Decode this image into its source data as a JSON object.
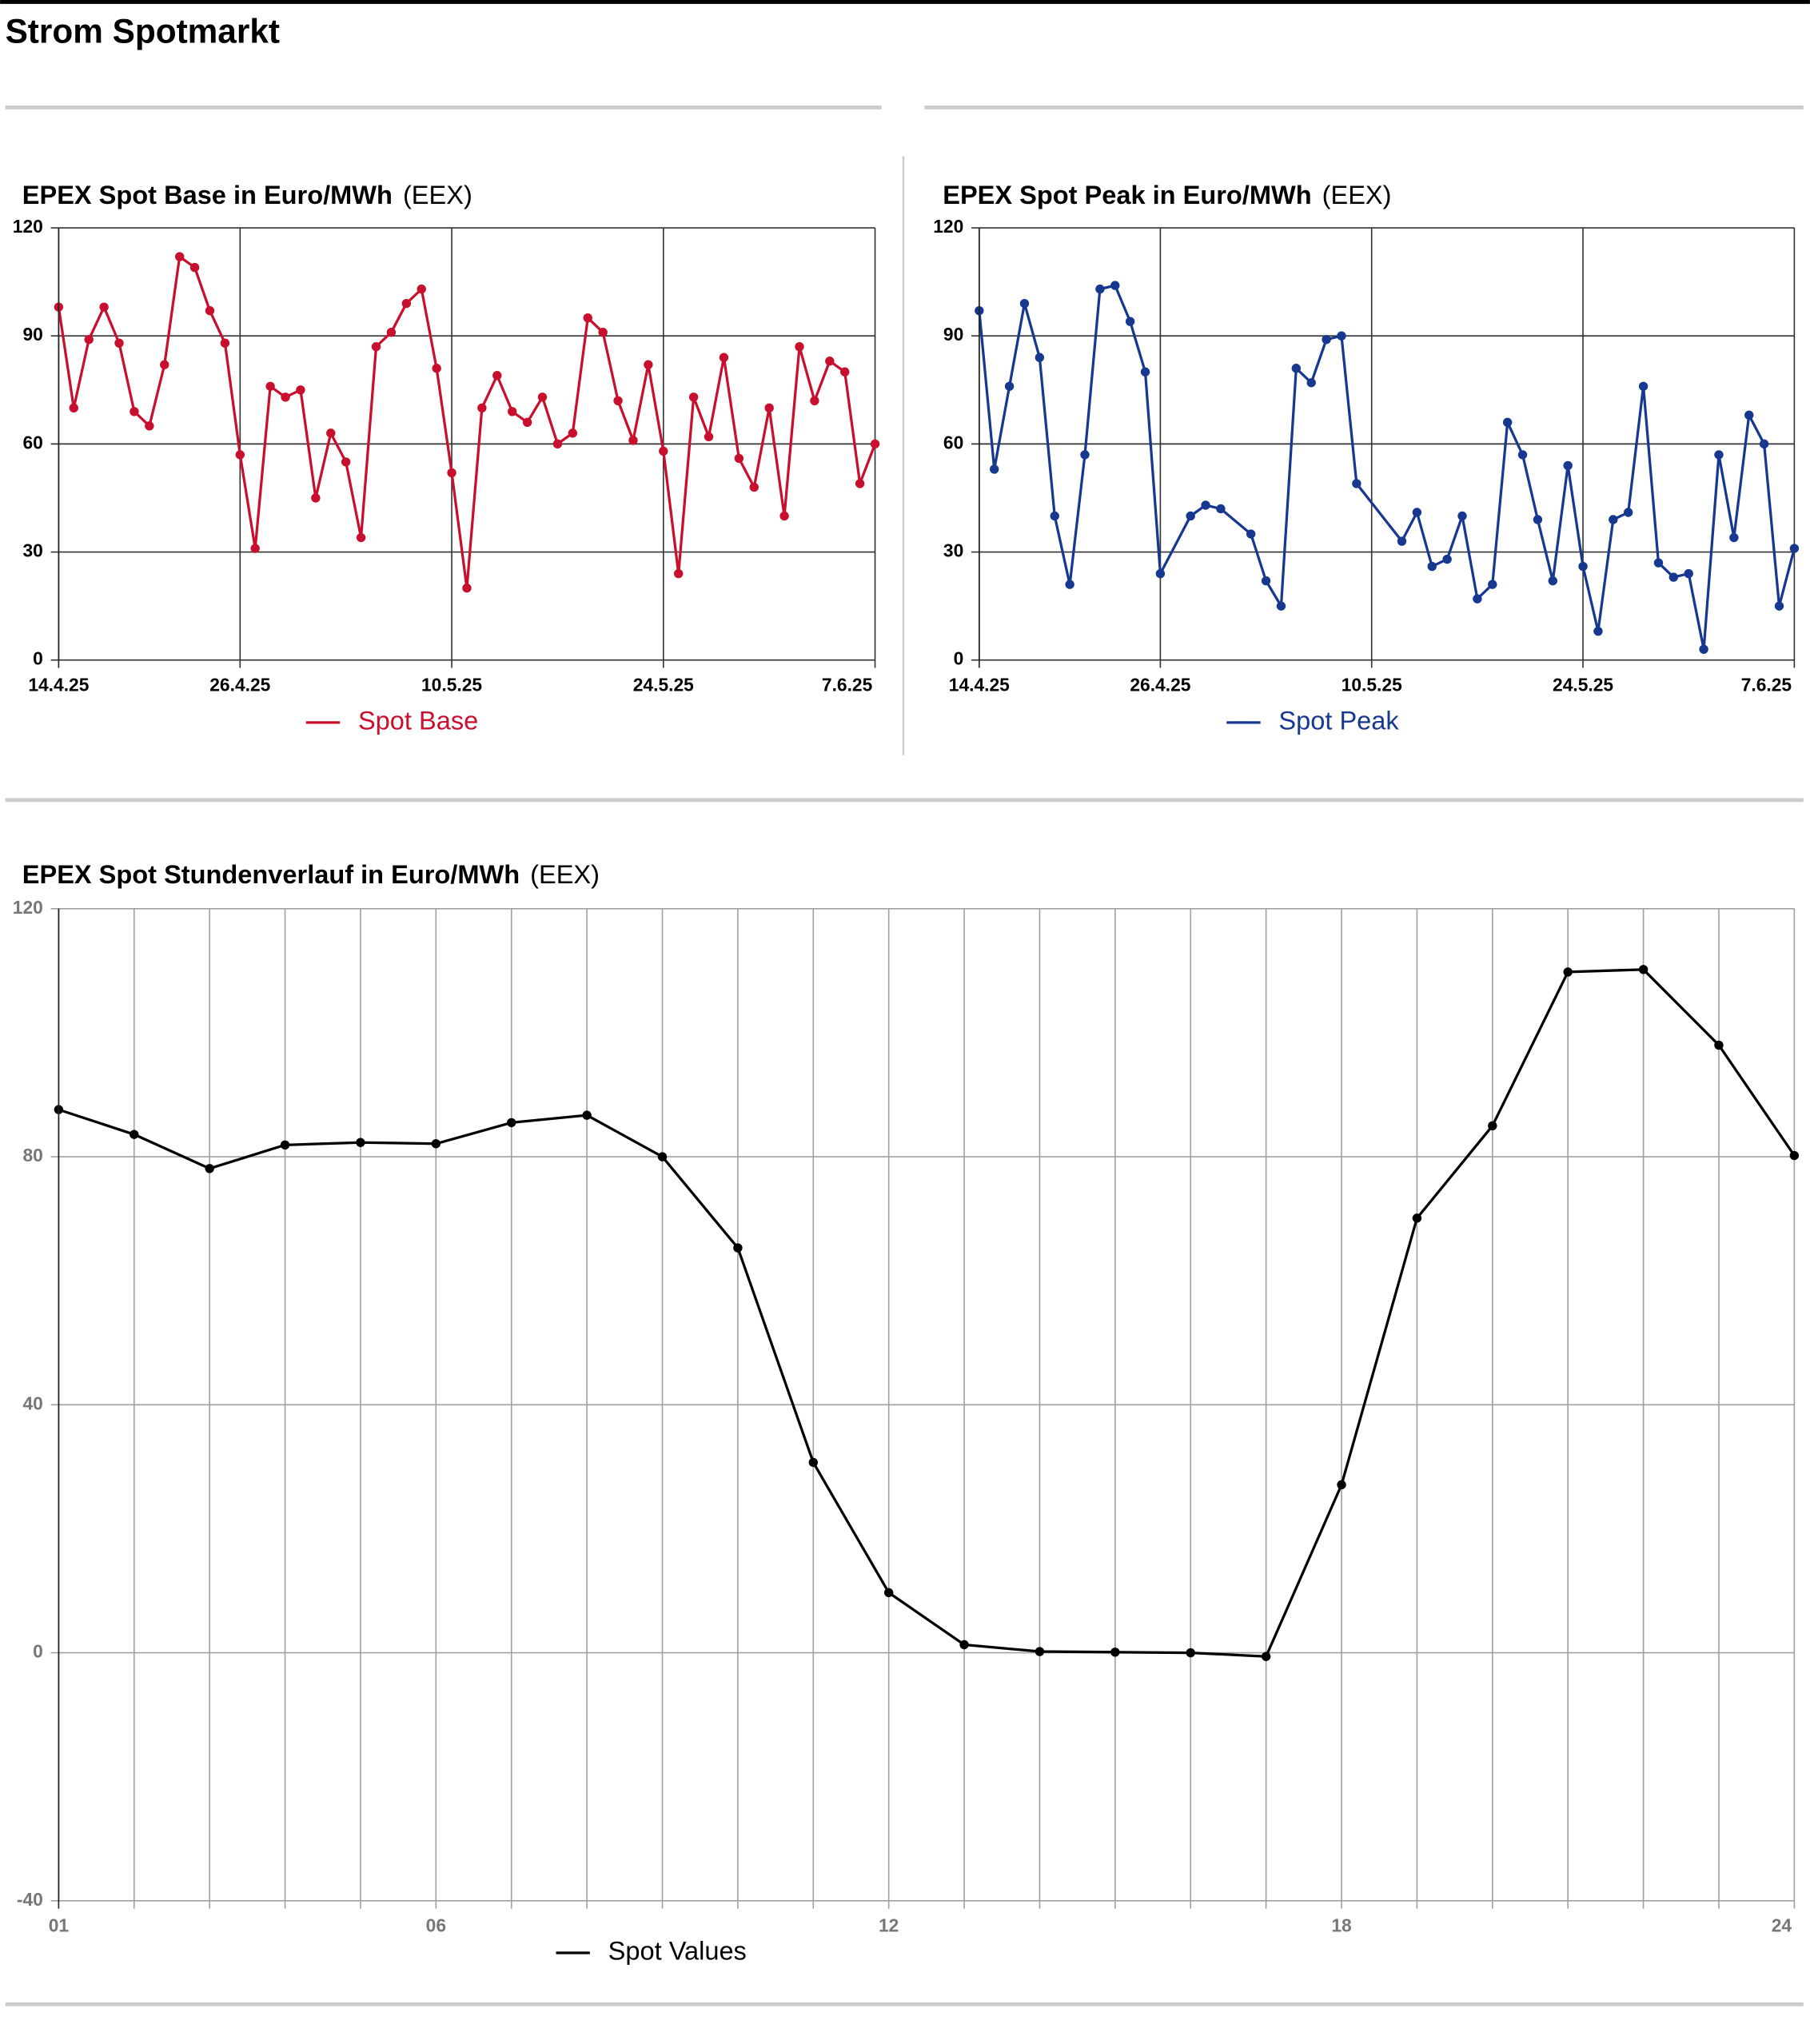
{
  "page_title": "Strom Spotmarkt",
  "chart_data": [
    {
      "type": "line",
      "title": "EPEX Spot Base in Euro/MWh",
      "source": "(EEX)",
      "categories": [
        "14.4.25",
        null,
        null,
        null,
        null,
        null,
        null,
        null,
        null,
        null,
        null,
        null,
        "26.4.25",
        null,
        null,
        null,
        null,
        null,
        null,
        null,
        null,
        null,
        null,
        null,
        null,
        null,
        "10.5.25",
        null,
        null,
        null,
        null,
        null,
        null,
        null,
        null,
        null,
        null,
        null,
        null,
        null,
        "24.5.25",
        null,
        null,
        null,
        null,
        null,
        null,
        null,
        null,
        null,
        null,
        null,
        null,
        null,
        "7.6.25"
      ],
      "series": [
        {
          "name": "Spot Base",
          "color": "#c8102e",
          "values": [
            98,
            70,
            89,
            98,
            88,
            69,
            65,
            82,
            112,
            109,
            97,
            88,
            57,
            31,
            76,
            73,
            75,
            45,
            63,
            55,
            34,
            87,
            91,
            99,
            103,
            81,
            52,
            20,
            70,
            79,
            69,
            66,
            73,
            60,
            63,
            95,
            91,
            72,
            61,
            82,
            58,
            24,
            73,
            62,
            84,
            56,
            48,
            70,
            40,
            87,
            72,
            83,
            80,
            49,
            60
          ]
        }
      ],
      "ylim": [
        0,
        120
      ],
      "yticks": [
        0,
        30,
        60,
        90,
        120
      ],
      "grid": true,
      "connect_gaps": true
    },
    {
      "type": "line",
      "title": "EPEX Spot Peak in Euro/MWh",
      "source": "(EEX)",
      "categories": [
        "14.4.25",
        null,
        null,
        null,
        null,
        null,
        null,
        null,
        null,
        null,
        null,
        null,
        "26.4.25",
        null,
        null,
        null,
        null,
        null,
        null,
        null,
        null,
        null,
        null,
        null,
        null,
        null,
        "10.5.25",
        null,
        null,
        null,
        null,
        null,
        null,
        null,
        null,
        null,
        null,
        null,
        null,
        null,
        "24.5.25",
        null,
        null,
        null,
        null,
        null,
        null,
        null,
        null,
        null,
        null,
        null,
        null,
        null,
        "7.6.25"
      ],
      "series": [
        {
          "name": "Spot Peak",
          "color": "#17388f",
          "values": [
            97,
            53,
            76,
            99,
            84,
            40,
            21,
            57,
            103,
            104,
            94,
            80,
            24,
            null,
            40,
            43,
            42,
            null,
            35,
            22,
            15,
            81,
            77,
            89,
            90,
            49,
            null,
            null,
            33,
            41,
            26,
            28,
            40,
            17,
            21,
            66,
            57,
            39,
            22,
            54,
            26,
            8,
            39,
            41,
            76,
            27,
            23,
            24,
            3,
            57,
            34,
            68,
            60,
            15,
            31
          ]
        }
      ],
      "ylim": [
        0,
        120
      ],
      "yticks": [
        0,
        30,
        60,
        90,
        120
      ],
      "grid": true,
      "connect_gaps": true
    },
    {
      "type": "line",
      "title": "EPEX Spot Stundenverlauf in Euro/MWh",
      "source": "(EEX)",
      "categories": [
        "01",
        null,
        null,
        null,
        null,
        "06",
        null,
        null,
        null,
        null,
        null,
        "12",
        null,
        null,
        null,
        null,
        null,
        "18",
        null,
        null,
        null,
        null,
        null,
        "24"
      ],
      "series": [
        {
          "name": "Spot Values",
          "color": "#000000",
          "values": [
            87.6,
            83.6,
            78.1,
            81.9,
            82.3,
            82.1,
            85.5,
            86.7,
            80,
            65.3,
            30.7,
            9.7,
            1.3,
            0.2,
            0.1,
            0,
            -0.6,
            27.1,
            70.1,
            85,
            109.8,
            110.2,
            98,
            80.2
          ]
        }
      ],
      "ylim": [
        -40,
        120
      ],
      "yticks": [
        -40,
        0,
        40,
        80,
        120
      ],
      "grid": true,
      "connect_gaps": true
    }
  ]
}
